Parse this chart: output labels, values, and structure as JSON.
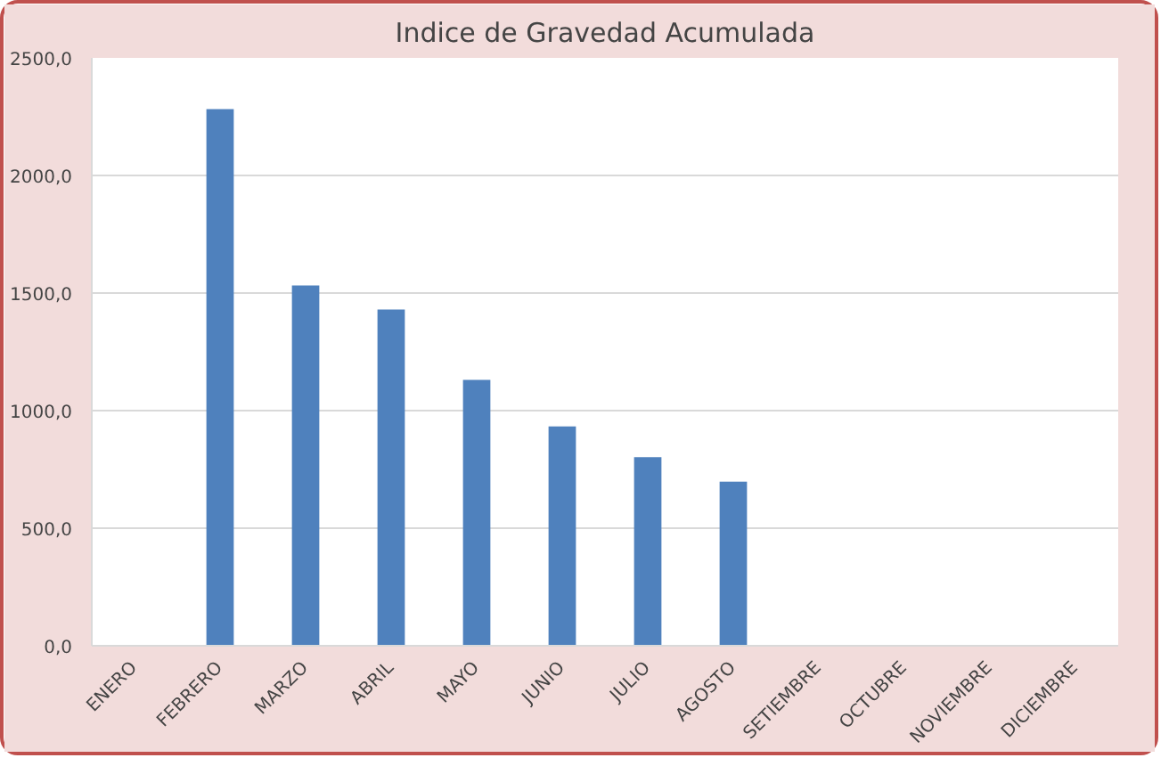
{
  "chart_data": {
    "type": "bar",
    "title": "Indice de Gravedad Acumulada",
    "categories": [
      "ENERO",
      "FEBRERO",
      "MARZO",
      "ABRIL",
      "MAYO",
      "JUNIO",
      "JULIO",
      "AGOSTO",
      "SETIEMBRE",
      "OCTUBRE",
      "NOVIEMBRE",
      "DICIEMBRE"
    ],
    "values": [
      null,
      2282,
      1532,
      1430,
      1131,
      933,
      802,
      698,
      null,
      null,
      null,
      null
    ],
    "color": "#4f81bd",
    "ylim": [
      0,
      2500
    ],
    "yticks": [
      {
        "value": 0,
        "label": "0,0"
      },
      {
        "value": 500,
        "label": "500,0"
      },
      {
        "value": 1000,
        "label": "1000,0"
      },
      {
        "value": 1500,
        "label": "1500,0"
      },
      {
        "value": 2000,
        "label": "2000,0"
      },
      {
        "value": 2500,
        "label": "2500,0"
      }
    ],
    "grid": "y"
  }
}
